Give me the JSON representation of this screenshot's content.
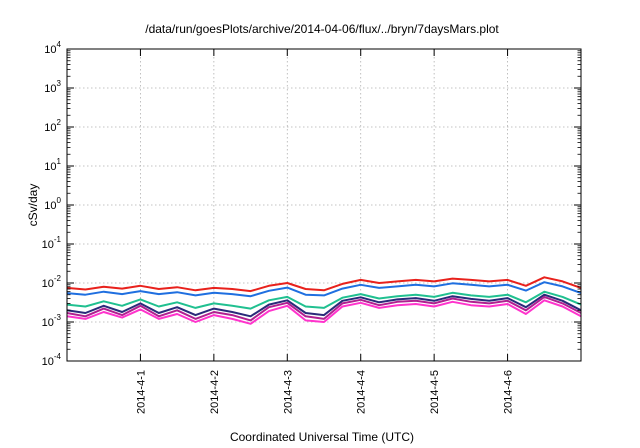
{
  "chart_data": {
    "type": "line",
    "title": "/data/run/goesPlots/archive/2014-04-06/flux/../bryn/7daysMars.plot",
    "xlabel": "Coordinated Universal Time (UTC)",
    "ylabel": "cSv/day",
    "yscale": "log",
    "ylim": [
      0.0001,
      10000
    ],
    "xlim": [
      "2014-03-31 00:00",
      "2014-04-07 00:00"
    ],
    "grid": true,
    "legend": "none",
    "y_ticks": [
      {
        "base": "10",
        "exp": "-4"
      },
      {
        "base": "10",
        "exp": "-3"
      },
      {
        "base": "10",
        "exp": "-2"
      },
      {
        "base": "10",
        "exp": "-1"
      },
      {
        "base": "10",
        "exp": "0"
      },
      {
        "base": "10",
        "exp": "1"
      },
      {
        "base": "10",
        "exp": "2"
      },
      {
        "base": "10",
        "exp": "3"
      },
      {
        "base": "10",
        "exp": "4"
      }
    ],
    "x_ticks": [
      "2014-4-1",
      "2014-4-2",
      "2014-4-3",
      "2014-4-4",
      "2014-4-5",
      "2014-4-6"
    ],
    "x": [
      "2014-03-31 00:00",
      "2014-03-31 06:00",
      "2014-03-31 12:00",
      "2014-03-31 18:00",
      "2014-04-01 00:00",
      "2014-04-01 06:00",
      "2014-04-01 12:00",
      "2014-04-01 18:00",
      "2014-04-02 00:00",
      "2014-04-02 06:00",
      "2014-04-02 12:00",
      "2014-04-02 18:00",
      "2014-04-03 00:00",
      "2014-04-03 06:00",
      "2014-04-03 12:00",
      "2014-04-03 18:00",
      "2014-04-04 00:00",
      "2014-04-04 06:00",
      "2014-04-04 12:00",
      "2014-04-04 18:00",
      "2014-04-05 00:00",
      "2014-04-05 06:00",
      "2014-04-05 12:00",
      "2014-04-05 18:00",
      "2014-04-06 00:00",
      "2014-04-06 06:00",
      "2014-04-06 12:00",
      "2014-04-06 18:00",
      "2014-04-07 00:00"
    ],
    "series": [
      {
        "color": "#e8211c",
        "values": [
          0.0075,
          0.0068,
          0.008,
          0.0072,
          0.0085,
          0.007,
          0.0078,
          0.0065,
          0.0075,
          0.007,
          0.0062,
          0.0085,
          0.01,
          0.007,
          0.0065,
          0.0095,
          0.012,
          0.01,
          0.011,
          0.012,
          0.011,
          0.013,
          0.012,
          0.011,
          0.012,
          0.0085,
          0.014,
          0.011,
          0.0075
        ]
      },
      {
        "color": "#1f6fe0",
        "values": [
          0.0055,
          0.005,
          0.006,
          0.0052,
          0.0062,
          0.0052,
          0.0058,
          0.0048,
          0.0056,
          0.0052,
          0.0046,
          0.0063,
          0.0076,
          0.005,
          0.0048,
          0.0072,
          0.009,
          0.0075,
          0.0082,
          0.009,
          0.0082,
          0.0098,
          0.009,
          0.0082,
          0.009,
          0.0064,
          0.0105,
          0.0082,
          0.0055
        ]
      },
      {
        "color": "#20c090",
        "values": [
          0.0028,
          0.0025,
          0.0034,
          0.0026,
          0.0038,
          0.0025,
          0.0032,
          0.0023,
          0.003,
          0.0026,
          0.0022,
          0.0036,
          0.0044,
          0.0025,
          0.0023,
          0.0042,
          0.0052,
          0.004,
          0.0046,
          0.005,
          0.0044,
          0.0056,
          0.0048,
          0.0044,
          0.005,
          0.0032,
          0.006,
          0.0044,
          0.0028
        ]
      },
      {
        "color": "#2a2a7a",
        "values": [
          0.002,
          0.0017,
          0.0026,
          0.0018,
          0.003,
          0.0017,
          0.0024,
          0.0015,
          0.0022,
          0.0018,
          0.0014,
          0.0028,
          0.0036,
          0.0017,
          0.0015,
          0.0035,
          0.0043,
          0.0032,
          0.0038,
          0.0041,
          0.0035,
          0.0046,
          0.0039,
          0.0035,
          0.0041,
          0.0024,
          0.005,
          0.0035,
          0.002
        ]
      },
      {
        "color": "#b02090",
        "values": [
          0.0017,
          0.0014,
          0.0022,
          0.0015,
          0.0026,
          0.0014,
          0.002,
          0.0012,
          0.0018,
          0.0015,
          0.0011,
          0.0024,
          0.0031,
          0.0014,
          0.0012,
          0.003,
          0.0037,
          0.0027,
          0.0033,
          0.0035,
          0.003,
          0.004,
          0.0033,
          0.003,
          0.0035,
          0.002,
          0.0044,
          0.003,
          0.0017
        ]
      },
      {
        "color": "#ff33cc",
        "values": [
          0.0014,
          0.0012,
          0.0018,
          0.0013,
          0.0021,
          0.0012,
          0.0016,
          0.001,
          0.0015,
          0.0012,
          0.0009,
          0.0019,
          0.0026,
          0.0011,
          0.001,
          0.0025,
          0.0031,
          0.0023,
          0.0027,
          0.0029,
          0.0025,
          0.0033,
          0.0027,
          0.0025,
          0.0029,
          0.0016,
          0.0036,
          0.0025,
          0.0014
        ]
      }
    ]
  }
}
